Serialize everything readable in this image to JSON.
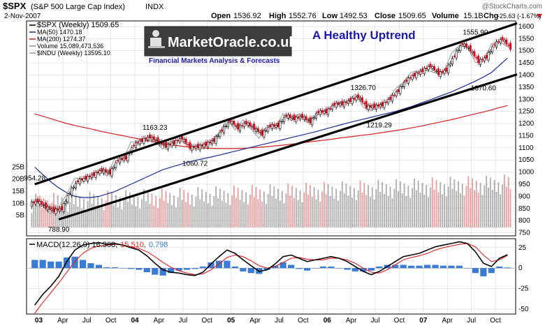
{
  "header": {
    "symbol": "$SPX",
    "name": "(S&P 500 Large Cap Index)",
    "exchange": "INDX",
    "date": "2-Nov-2007",
    "open_label": "Open",
    "open": "1536.92",
    "high_label": "High",
    "high": "1552.76",
    "low_label": "Low",
    "low": "1492.53",
    "close_label": "Close",
    "close": "1509.65",
    "volume_label": "Volume",
    "volume": "15.1B",
    "chg_label": "Chg",
    "chg": "-25.63 (-1.67%)",
    "watermark": "@StockCharts.com"
  },
  "legend": [
    {
      "text": "$SPX (Weekly) 1509.65",
      "color": "#000000"
    },
    {
      "text": "MA(50) 1470.18",
      "color": "#1f2f9a"
    },
    {
      "text": "MA(200) 1274.37",
      "color": "#d42020"
    },
    {
      "text": "Volume 15,089,473,536",
      "color": "#888888"
    },
    {
      "text": "$INDU (Weekly) 13595.10",
      "color": "#999999"
    }
  ],
  "logo": {
    "brand": "MarketOracle.co.uk",
    "tagline": "Financial Markets Analysis & Forecasts"
  },
  "headline": "A Healthy Uptrend",
  "colors": {
    "up_candle": "#000000",
    "down_candle": "#cc1020",
    "ma50": "#1f2f9a",
    "ma200": "#d42020",
    "indu": "#9a9a9a",
    "macd_line": "#000000",
    "signal_line": "#e02020",
    "histogram": "#3a7bd5",
    "volume_up": "#b0b0b0",
    "volume_down": "#e8a0a0"
  },
  "chart_data": [
    {
      "type": "candlestick",
      "title": "$SPX (S&P 500 Large Cap Index) INDX",
      "x": [
        "2002-12",
        "2003-01",
        "2003-02",
        "2003-03",
        "2003-04",
        "2003-05",
        "2003-06",
        "2003-07",
        "2003-08",
        "2003-09",
        "2003-10",
        "2003-11",
        "2003-12",
        "2004-01",
        "2004-02",
        "2004-03",
        "2004-04",
        "2004-05",
        "2004-06",
        "2004-07",
        "2004-08",
        "2004-09",
        "2004-10",
        "2004-11",
        "2004-12",
        "2005-01",
        "2005-02",
        "2005-03",
        "2005-04",
        "2005-05",
        "2005-06",
        "2005-07",
        "2005-08",
        "2005-09",
        "2005-10",
        "2005-11",
        "2005-12",
        "2006-01",
        "2006-02",
        "2006-03",
        "2006-04",
        "2006-05",
        "2006-06",
        "2006-07",
        "2006-08",
        "2006-09",
        "2006-10",
        "2006-11",
        "2006-12",
        "2007-01",
        "2007-02",
        "2007-03",
        "2007-04",
        "2007-05",
        "2007-06",
        "2007-07",
        "2007-08",
        "2007-09",
        "2007-10",
        "2007-11"
      ],
      "close": [
        880,
        856,
        841,
        849,
        917,
        964,
        975,
        990,
        1008,
        996,
        1050,
        1058,
        1112,
        1131,
        1145,
        1126,
        1107,
        1121,
        1140,
        1101,
        1104,
        1115,
        1130,
        1173,
        1212,
        1181,
        1204,
        1180,
        1157,
        1191,
        1191,
        1234,
        1220,
        1229,
        1207,
        1249,
        1248,
        1280,
        1281,
        1295,
        1311,
        1270,
        1270,
        1277,
        1304,
        1336,
        1378,
        1400,
        1418,
        1438,
        1406,
        1420,
        1482,
        1530,
        1503,
        1455,
        1474,
        1527,
        1549,
        1510
      ],
      "ma50": [
        1020,
        990,
        960,
        935,
        915,
        900,
        895,
        895,
        900,
        910,
        920,
        935,
        950,
        965,
        980,
        995,
        1010,
        1020,
        1030,
        1040,
        1048,
        1055,
        1062,
        1070,
        1078,
        1086,
        1094,
        1102,
        1110,
        1118,
        1126,
        1134,
        1142,
        1150,
        1158,
        1166,
        1175,
        1184,
        1193,
        1202,
        1210,
        1218,
        1226,
        1234,
        1242,
        1250,
        1260,
        1270,
        1282,
        1294,
        1306,
        1318,
        1330,
        1345,
        1360,
        1375,
        1392,
        1410,
        1440,
        1470
      ],
      "ma200": [
        1240,
        1230,
        1220,
        1210,
        1200,
        1192,
        1185,
        1178,
        1170,
        1163,
        1156,
        1150,
        1143,
        1137,
        1130,
        1124,
        1118,
        1113,
        1108,
        1104,
        1101,
        1099,
        1098,
        1097,
        1097,
        1097,
        1098,
        1100,
        1102,
        1105,
        1108,
        1111,
        1115,
        1119,
        1123,
        1127,
        1131,
        1135,
        1140,
        1144,
        1148,
        1152,
        1156,
        1161,
        1166,
        1171,
        1176,
        1182,
        1188,
        1195,
        1202,
        1209,
        1216,
        1224,
        1232,
        1240,
        1248,
        1256,
        1266,
        1274
      ],
      "annotations": [
        {
          "label": "788.90",
          "x": "2003-03",
          "y": 788.9
        },
        {
          "label": "954.28",
          "x": "2002-12",
          "y": 954.28
        },
        {
          "label": "1163.23",
          "x": "2004-03",
          "y": 1163.23
        },
        {
          "label": "1060.72",
          "x": "2004-08",
          "y": 1060.72
        },
        {
          "label": "1326.70",
          "x": "2006-05",
          "y": 1326.7
        },
        {
          "label": "1219.29",
          "x": "2006-07",
          "y": 1219.29
        },
        {
          "label": "1555.90",
          "x": "2007-07",
          "y": 1555.9
        },
        {
          "label": "1370.60",
          "x": "2007-08",
          "y": 1370.6
        }
      ],
      "ylim": [
        740,
        1620
      ],
      "y_ticks": [
        750,
        800,
        850,
        900,
        950,
        1000,
        1050,
        1100,
        1150,
        1200,
        1250,
        1300,
        1350,
        1400,
        1450,
        1500,
        1550,
        1600
      ],
      "volume_ylim": [
        0,
        30
      ],
      "volume_ticks": [
        {
          "label": "5B",
          "value": 5
        },
        {
          "label": "10B",
          "value": 10
        },
        {
          "label": "15B",
          "value": 15
        },
        {
          "label": "20B",
          "value": 20
        },
        {
          "label": "25B",
          "value": 25
        }
      ],
      "x_ticks": [
        {
          "label": "03",
          "x": "2003-01",
          "bold": true
        },
        {
          "label": "Apr",
          "x": "2003-04"
        },
        {
          "label": "Jul",
          "x": "2003-07"
        },
        {
          "label": "Oct",
          "x": "2003-10"
        },
        {
          "label": "04",
          "x": "2004-01",
          "bold": true
        },
        {
          "label": "Apr",
          "x": "2004-04"
        },
        {
          "label": "Jul",
          "x": "2004-07"
        },
        {
          "label": "Oct",
          "x": "2004-10"
        },
        {
          "label": "05",
          "x": "2005-01",
          "bold": true
        },
        {
          "label": "Apr",
          "x": "2005-04"
        },
        {
          "label": "Jul",
          "x": "2005-07"
        },
        {
          "label": "Oct",
          "x": "2005-10"
        },
        {
          "label": "06",
          "x": "2006-01",
          "bold": true
        },
        {
          "label": "Apr",
          "x": "2006-04"
        },
        {
          "label": "Jul",
          "x": "2006-07"
        },
        {
          "label": "Oct",
          "x": "2006-10"
        },
        {
          "label": "07",
          "x": "2007-01",
          "bold": true
        },
        {
          "label": "Apr",
          "x": "2007-04"
        },
        {
          "label": "Jul",
          "x": "2007-07"
        },
        {
          "label": "Oct",
          "x": "2007-10"
        }
      ],
      "trend_channel": {
        "upper": [
          {
            "x": "2002-12",
            "y": 950
          },
          {
            "x": "2007-11",
            "y": 1600
          }
        ],
        "lower": [
          {
            "x": "2003-03",
            "y": 805
          },
          {
            "x": "2007-11",
            "y": 1390
          }
        ]
      },
      "grid": true
    },
    {
      "type": "line",
      "title": "MACD(12,26,9)",
      "legend_values": [
        {
          "text": "MACD(12,26,9) 16.308,",
          "color": "#000000"
        },
        {
          "text": "15.510,",
          "color": "#e02020"
        },
        {
          "text": "0.798",
          "color": "#3a7bd5"
        }
      ],
      "macd": [
        -45,
        -32,
        -22,
        -10,
        8,
        22,
        28,
        30,
        31,
        29,
        30,
        28,
        25,
        22,
        15,
        6,
        -2,
        -5,
        -6,
        -8,
        -9,
        -5,
        5,
        14,
        22,
        18,
        10,
        3,
        -4,
        -2,
        5,
        14,
        16,
        12,
        8,
        10,
        12,
        14,
        12,
        8,
        2,
        -4,
        -8,
        -4,
        2,
        8,
        14,
        16,
        18,
        22,
        26,
        28,
        30,
        32,
        30,
        20,
        6,
        2,
        12,
        16.3
      ],
      "signal": [
        -55,
        -42,
        -30,
        -18,
        -5,
        8,
        18,
        24,
        27,
        28,
        29,
        28,
        26,
        24,
        20,
        14,
        7,
        1,
        -3,
        -6,
        -8,
        -7,
        -2,
        5,
        13,
        16,
        14,
        9,
        3,
        0,
        2,
        7,
        12,
        13,
        11,
        10,
        10,
        12,
        12,
        10,
        6,
        0,
        -5,
        -6,
        -2,
        4,
        10,
        13,
        15,
        18,
        22,
        25,
        27,
        29,
        30,
        26,
        16,
        8,
        10,
        15.5
      ],
      "histogram": [
        10,
        10,
        8,
        8,
        13,
        14,
        10,
        6,
        4,
        1,
        1,
        0,
        -1,
        -2,
        -5,
        -8,
        -9,
        -6,
        -3,
        -2,
        -1,
        2,
        7,
        9,
        9,
        2,
        -4,
        -6,
        -7,
        -2,
        3,
        7,
        4,
        -1,
        -3,
        0,
        2,
        2,
        0,
        -2,
        -4,
        -4,
        -3,
        2,
        4,
        4,
        4,
        3,
        3,
        4,
        4,
        3,
        3,
        3,
        0,
        -6,
        -10,
        -6,
        2,
        0.8
      ],
      "ylim": [
        -55,
        35
      ],
      "y_ticks": [
        -50,
        -25,
        0,
        25
      ],
      "zero_line": true
    }
  ]
}
